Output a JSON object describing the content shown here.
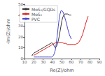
{
  "chart_data": {
    "type": "line",
    "title": "",
    "xlabel": "Re(Z)/ohm",
    "ylabel": "-Im(Z)/ohm",
    "xlim": [
      10,
      90
    ],
    "ylim": [
      0,
      50
    ],
    "xticks": [
      10,
      20,
      30,
      40,
      50,
      60,
      70,
      80,
      90
    ],
    "yticks": [
      0,
      10,
      20,
      30,
      40,
      50
    ],
    "grid": false,
    "legend": "upper left",
    "series": [
      {
        "name": "MoS₂/GQDs",
        "color": "#333333",
        "x": [
          18,
          19,
          20,
          22,
          24,
          26,
          28,
          30,
          32,
          34,
          36,
          38,
          39,
          40,
          40.5,
          41,
          41.5,
          42,
          43,
          44,
          45,
          46,
          47,
          48,
          49,
          50,
          51,
          52,
          53,
          54,
          56,
          58,
          60
        ],
        "values": [
          2.5,
          4,
          5,
          6,
          7,
          8,
          9,
          10,
          11,
          12,
          13,
          14,
          14.5,
          14,
          13.5,
          13,
          12,
          11,
          10,
          11,
          13,
          16,
          20,
          25,
          30,
          35,
          38,
          40,
          41,
          41,
          41,
          40,
          40
        ]
      },
      {
        "name": "MoS₂",
        "color": "#dd2222",
        "x": [
          20,
          22,
          24,
          26,
          28,
          30,
          32,
          34,
          36,
          38,
          40,
          42,
          44,
          46,
          48,
          50,
          52,
          54,
          56,
          58,
          60,
          62,
          63,
          64,
          65,
          66,
          67,
          68,
          70,
          72,
          74,
          76,
          78
        ],
        "values": [
          3,
          4,
          5,
          6,
          7,
          8,
          9,
          10,
          11,
          12,
          13,
          14,
          15,
          15,
          15,
          15,
          14,
          14,
          13,
          13,
          13,
          13,
          13,
          13,
          13,
          14,
          14,
          15,
          18,
          22,
          28,
          34,
          39
        ]
      },
      {
        "name": "PVC",
        "color": "#4444cc",
        "x": [
          20,
          22,
          24,
          26,
          28,
          30,
          32,
          34,
          36,
          37,
          38,
          39,
          40,
          40.5,
          41,
          42,
          43,
          44,
          45,
          46,
          47,
          48,
          49,
          50,
          51,
          52,
          53,
          54,
          55,
          56,
          58,
          60
        ],
        "values": [
          1.5,
          1.5,
          1.5,
          1.5,
          1.5,
          1.5,
          1.5,
          1.5,
          1.5,
          1.5,
          1.5,
          1.5,
          2,
          2.5,
          3,
          5,
          8,
          14,
          21,
          29,
          36,
          41,
          44,
          44,
          43,
          41,
          38,
          35,
          32,
          28,
          22,
          18
        ]
      }
    ]
  }
}
